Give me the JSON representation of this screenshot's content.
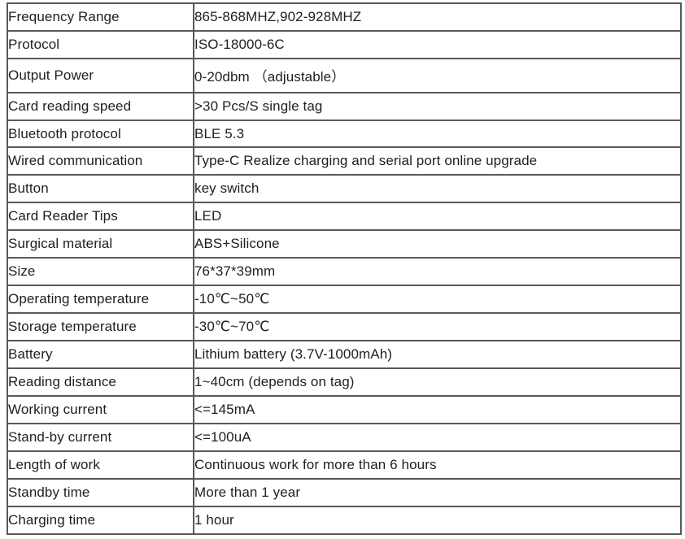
{
  "page": {
    "background": "#ffffff",
    "text_color": "#1f1f1f",
    "border_color": "#585858"
  },
  "table": {
    "title": "product-specification-table",
    "columns": [
      "label",
      "value"
    ],
    "rows": [
      {
        "label": "Frequency Range",
        "value": "865-868MHZ,902-928MHZ"
      },
      {
        "label": "Protocol",
        "value": "ISO-18000-6C"
      },
      {
        "label": "Output Power",
        "value": "0-20dbm （adjustable）"
      },
      {
        "label": "Card reading speed",
        "value": ">30 Pcs/S single tag"
      },
      {
        "label": "Bluetooth protocol",
        "value": "BLE 5.3"
      },
      {
        "label": "Wired communication",
        "value": "Type-C Realize charging and serial port online upgrade"
      },
      {
        "label": "Button",
        "value": "key switch"
      },
      {
        "label": "Card Reader Tips",
        "value": "LED"
      },
      {
        "label": "Surgical material",
        "value": "ABS+Silicone"
      },
      {
        "label": "Size",
        "value": "76*37*39mm"
      },
      {
        "label": "Operating temperature",
        "value": "-10℃~50℃"
      },
      {
        "label": "Storage temperature",
        "value": "-30℃~70℃"
      },
      {
        "label": "Battery",
        "value": "Lithium battery (3.7V-1000mAh)"
      },
      {
        "label": "Reading distance",
        "value": "1~40cm (depends on tag)"
      },
      {
        "label": "Working current",
        "value": "<=145mA"
      },
      {
        "label": "Stand-by current",
        "value": "<=100uA"
      },
      {
        "label": "Length of work",
        "value": "Continuous work for more than 6 hours"
      },
      {
        "label": "Standby time",
        "value": "More than 1 year"
      },
      {
        "label": "Charging time",
        "value": "1 hour"
      }
    ]
  }
}
